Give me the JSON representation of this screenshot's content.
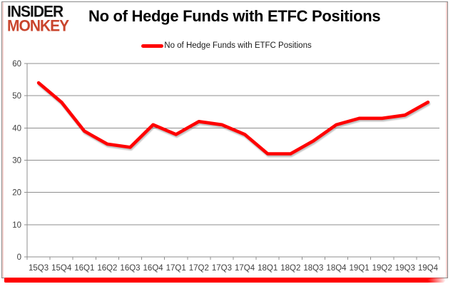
{
  "brand": {
    "line1": "INSIDER",
    "line2": "MONKEY"
  },
  "header": {
    "title": "No of Hedge Funds with ETFC Positions"
  },
  "legend": {
    "label": "No of Hedge Funds with ETFC Positions",
    "line_color": "#ff0000"
  },
  "colors": {
    "series_red": "#ff0000",
    "gridline_gray": "#8f8f8f",
    "axis_label_gray": "#3f3f3f",
    "border_gray": "#8a8a8a",
    "pink_inner_edge": "#f7d3d0",
    "logo_red": "#c9452d",
    "bottom_bar_red": "#ff0000"
  },
  "chart_data": {
    "type": "line",
    "title": "No of Hedge Funds with ETFC Positions",
    "categories": [
      "15Q3",
      "15Q4",
      "16Q1",
      "16Q2",
      "16Q3",
      "16Q4",
      "17Q1",
      "17Q2",
      "17Q3",
      "17Q4",
      "18Q1",
      "18Q2",
      "18Q3",
      "18Q4",
      "19Q1",
      "19Q2",
      "19Q3",
      "19Q4"
    ],
    "series": [
      {
        "name": "No of Hedge Funds with ETFC Positions",
        "color": "#ff0000",
        "values": [
          54,
          48,
          39,
          35,
          34,
          41,
          38,
          42,
          41,
          38,
          32,
          32,
          36,
          41,
          43,
          43,
          44,
          48
        ]
      }
    ],
    "xlabel": "",
    "ylabel": "",
    "ylim": [
      0,
      60
    ],
    "yticks": [
      0,
      10,
      20,
      30,
      40,
      50,
      60
    ],
    "grid": true,
    "legend_position": "top-center"
  }
}
